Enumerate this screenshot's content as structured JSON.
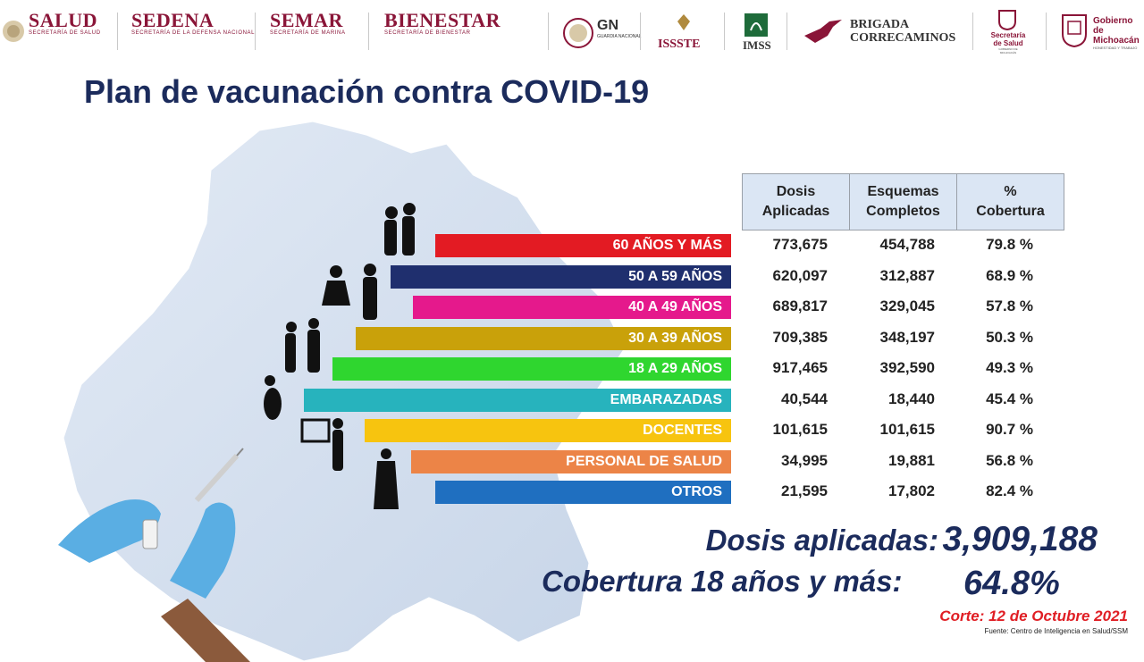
{
  "logos": {
    "salud": {
      "name": "SALUD",
      "sub": "SECRETARÍA DE SALUD"
    },
    "sedena": {
      "name": "SEDENA",
      "sub": "SECRETARÍA DE LA DEFENSA NACIONAL"
    },
    "semar": {
      "name": "SEMAR",
      "sub": "SECRETARÍA DE MARINA"
    },
    "bienestar": {
      "name": "BIENESTAR",
      "sub": "SECRETARÍA DE BIENESTAR"
    },
    "gn": {
      "name": "GN",
      "sub": "GUARDIA NACIONAL"
    },
    "issste": {
      "name": "ISSSTE"
    },
    "imss": {
      "name": "IMSS"
    },
    "brigada": {
      "line1": "BRIGADA",
      "line2": "CORRECAMINOS"
    },
    "ssm": {
      "line1": "Secretaría",
      "line2": "de Salud",
      "sub": "GOBIERNO DE MICHOACÁN"
    },
    "gobierno": {
      "line1": "Gobierno de",
      "line2": "Michoacán",
      "sub": "HONESTIDAD Y TRABAJO"
    }
  },
  "title": "Plan de vacunación contra COVID-19",
  "table": {
    "headers": [
      {
        "line1": "Dosis",
        "line2": "Aplicadas"
      },
      {
        "line1": "Esquemas",
        "line2": "Completos"
      },
      {
        "line1": "%",
        "line2": "Cobertura"
      }
    ],
    "rows": [
      {
        "label": "60 AÑOS Y MÁS",
        "color": "#e31b23",
        "dosis": "773,675",
        "esquemas": "454,788",
        "cobertura": "79.8 %"
      },
      {
        "label": "50 A 59 AÑOS",
        "color": "#1f2f6e",
        "dosis": "620,097",
        "esquemas": "312,887",
        "cobertura": "68.9 %"
      },
      {
        "label": "40 A 49 AÑOS",
        "color": "#e5198c",
        "dosis": "689,817",
        "esquemas": "329,045",
        "cobertura": "57.8 %"
      },
      {
        "label": "30 A 39 AÑOS",
        "color": "#c9a10a",
        "dosis": "709,385",
        "esquemas": "348,197",
        "cobertura": "50.3 %"
      },
      {
        "label": "18 A 29 AÑOS",
        "color": "#2fd62f",
        "dosis": "917,465",
        "esquemas": "392,590",
        "cobertura": "49.3 %"
      },
      {
        "label": "EMBARAZADAS",
        "color": "#27b3bd",
        "dosis": "40,544",
        "esquemas": "18,440",
        "cobertura": "45.4 %"
      },
      {
        "label": "DOCENTES",
        "color": "#f7c40f",
        "dosis": "101,615",
        "esquemas": "101,615",
        "cobertura": "90.7 %"
      },
      {
        "label": "PERSONAL DE SALUD",
        "color": "#ec8447",
        "dosis": "34,995",
        "esquemas": "19,881",
        "cobertura": "56.8 %"
      },
      {
        "label": "OTROS",
        "color": "#1f6fc0",
        "dosis": "21,595",
        "esquemas": "17,802",
        "cobertura": "82.4 %"
      }
    ]
  },
  "summary": {
    "dosis_label": "Dosis aplicadas:",
    "dosis_value": "3,909,188",
    "cobertura_label": "Cobertura 18 años y más:",
    "cobertura_value": "64.8%"
  },
  "corte": "Corte: 12 de Octubre 2021",
  "fuente": "Fuente: Centro de Inteligencia en Salud/SSM"
}
